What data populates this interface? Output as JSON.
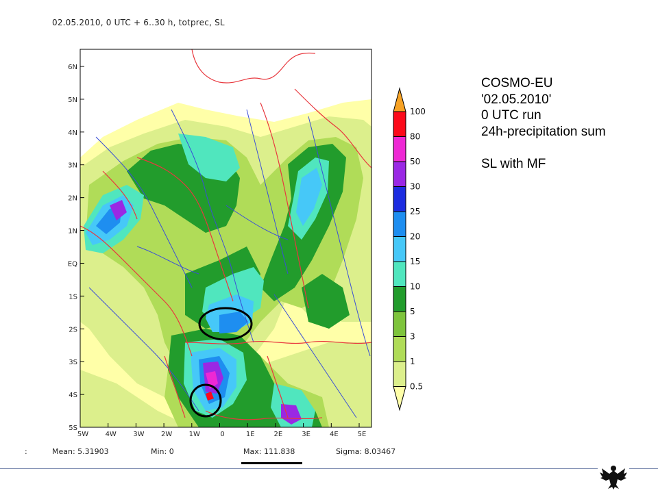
{
  "header": {
    "title": "02.05.2010, 0 UTC + 6..30 h, totprec, SL"
  },
  "caption": {
    "lines": [
      "COSMO-EU",
      "'02.05.2010'",
      "0 UTC run",
      "24h-precipitation sum",
      "",
      "SL with MF"
    ]
  },
  "map": {
    "lat_labels": [
      "6N",
      "5N",
      "4N",
      "3N",
      "2N",
      "1N",
      "EQ",
      "1S",
      "2S",
      "3S",
      "4S",
      "5S"
    ],
    "lon_labels": [
      "5W",
      "4W",
      "3W",
      "2W",
      "1W",
      "0",
      "1E",
      "2E",
      "3E",
      "4E",
      "5E"
    ],
    "colors": {
      "border": "#e8383e",
      "river": "#3a4fd6",
      "frame": "#000000"
    }
  },
  "colorbar": {
    "levels": [
      "0.5",
      "1",
      "3",
      "5",
      "10",
      "15",
      "20",
      "25",
      "30",
      "50",
      "80",
      "100"
    ],
    "colors": [
      "#ffffa8",
      "#dcef8c",
      "#b0dc58",
      "#7ec43c",
      "#229c2c",
      "#50e6be",
      "#46c8f8",
      "#1e8ef0",
      "#1c2ce0",
      "#9a28e4",
      "#ee28d4",
      "#fc0a1a",
      "#f7a224"
    ]
  },
  "stats": {
    "prefix": ":",
    "mean": "Mean: 5.31903",
    "min": "Min: 0",
    "max": "Max: 111.838",
    "sigma": "Sigma: 8.03467"
  }
}
